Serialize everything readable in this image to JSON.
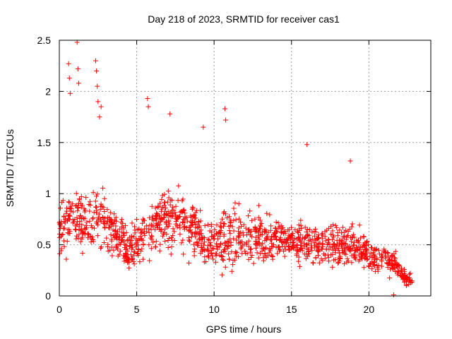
{
  "chart_data": {
    "type": "scatter",
    "title": "Day 218 of 2023, SRMTID for receiver cas1",
    "xlabel": "GPS time / hours",
    "ylabel": "SRMTID / TECUs",
    "xlim": [
      0,
      24
    ],
    "ylim": [
      0,
      2.5
    ],
    "xticks": [
      0,
      5,
      10,
      15,
      20
    ],
    "xtick_labels": [
      "0",
      "5",
      "10",
      "15",
      "20"
    ],
    "yticks": [
      0,
      0.5,
      1,
      1.5,
      2,
      2.5
    ],
    "ytick_labels": [
      "0",
      "0.5",
      "1",
      "1.5",
      "2",
      "2.5"
    ],
    "grid": true,
    "marker": "+",
    "series": [
      {
        "name": "SRMTID",
        "color": "#ff0000",
        "trend": [
          {
            "x": 0.0,
            "y": 0.65,
            "spread": 0.35
          },
          {
            "x": 1.0,
            "y": 0.75,
            "spread": 0.4
          },
          {
            "x": 2.0,
            "y": 0.7,
            "spread": 0.35
          },
          {
            "x": 2.6,
            "y": 0.8,
            "spread": 0.45
          },
          {
            "x": 3.5,
            "y": 0.62,
            "spread": 0.35
          },
          {
            "x": 4.5,
            "y": 0.45,
            "spread": 0.3
          },
          {
            "x": 5.5,
            "y": 0.6,
            "spread": 0.35
          },
          {
            "x": 7.0,
            "y": 0.75,
            "spread": 0.45
          },
          {
            "x": 8.5,
            "y": 0.7,
            "spread": 0.45
          },
          {
            "x": 9.5,
            "y": 0.5,
            "spread": 0.3
          },
          {
            "x": 10.5,
            "y": 0.55,
            "spread": 0.4
          },
          {
            "x": 12.0,
            "y": 0.6,
            "spread": 0.4
          },
          {
            "x": 13.5,
            "y": 0.55,
            "spread": 0.3
          },
          {
            "x": 15.0,
            "y": 0.55,
            "spread": 0.25
          },
          {
            "x": 16.5,
            "y": 0.5,
            "spread": 0.3
          },
          {
            "x": 18.0,
            "y": 0.5,
            "spread": 0.3
          },
          {
            "x": 19.5,
            "y": 0.45,
            "spread": 0.25
          },
          {
            "x": 20.5,
            "y": 0.35,
            "spread": 0.2
          },
          {
            "x": 21.5,
            "y": 0.35,
            "spread": 0.2
          },
          {
            "x": 22.2,
            "y": 0.2,
            "spread": 0.1
          },
          {
            "x": 22.8,
            "y": 0.15,
            "spread": 0.08
          }
        ],
        "point_count": 1400,
        "outliers": [
          {
            "x": 0.6,
            "y": 2.27
          },
          {
            "x": 0.65,
            "y": 2.13
          },
          {
            "x": 0.7,
            "y": 1.98
          },
          {
            "x": 1.15,
            "y": 2.48
          },
          {
            "x": 1.2,
            "y": 2.22
          },
          {
            "x": 1.25,
            "y": 2.08
          },
          {
            "x": 2.35,
            "y": 2.3
          },
          {
            "x": 2.4,
            "y": 2.2
          },
          {
            "x": 2.45,
            "y": 2.05
          },
          {
            "x": 2.5,
            "y": 1.9
          },
          {
            "x": 2.6,
            "y": 1.75
          },
          {
            "x": 2.7,
            "y": 1.85
          },
          {
            "x": 5.7,
            "y": 1.93
          },
          {
            "x": 5.75,
            "y": 1.85
          },
          {
            "x": 7.15,
            "y": 1.78
          },
          {
            "x": 9.3,
            "y": 1.65
          },
          {
            "x": 10.7,
            "y": 1.83
          },
          {
            "x": 10.75,
            "y": 1.72
          },
          {
            "x": 16.0,
            "y": 1.48
          },
          {
            "x": 18.8,
            "y": 1.32
          },
          {
            "x": 21.6,
            "y": 0.01
          }
        ]
      }
    ]
  }
}
